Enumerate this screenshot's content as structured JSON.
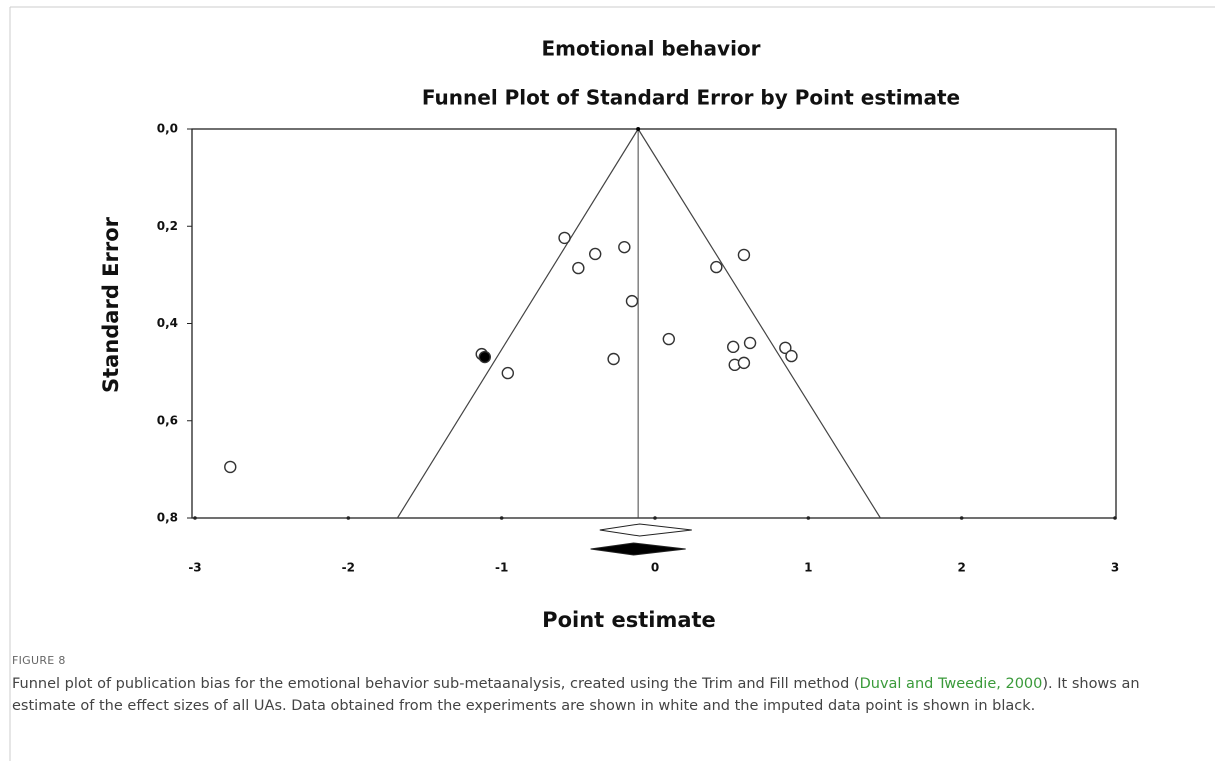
{
  "chart_data": {
    "type": "scatter",
    "title": "Emotional behavior",
    "subtitle": "Funnel Plot of Standard Error by Point estimate",
    "x_label": "Point estimate",
    "y_label": "Standard Error",
    "xlim": [
      -3,
      3
    ],
    "xticks": [
      -3,
      -2,
      -1,
      0,
      1,
      2,
      3
    ],
    "ylim": [
      0.8,
      0
    ],
    "yticks": [
      {
        "value": 0,
        "label": "0,0"
      },
      {
        "value": 0.2,
        "label": "0,2"
      },
      {
        "value": 0.4,
        "label": "0,4"
      },
      {
        "value": 0.6,
        "label": "0,6"
      },
      {
        "value": 0.8,
        "label": "0,8"
      }
    ],
    "funnel_center": -0.11,
    "funnel_bottom": [
      -1.68,
      1.47
    ],
    "summary": [
      {
        "estimate": -0.1,
        "lower": -0.36,
        "upper": 0.24,
        "color": "#ffffff"
      },
      {
        "estimate": -0.14,
        "lower": -0.42,
        "upper": 0.2,
        "color": "#000000"
      }
    ],
    "series": [
      {
        "color": "#ffffff",
        "x": [
          -0.59,
          -0.5,
          -0.39,
          -0.2,
          -0.15,
          -0.27,
          0.09,
          -0.96,
          -1.13,
          -2.77,
          0.4,
          0.58,
          0.51,
          0.62,
          0.52,
          0.58,
          0.85,
          0.89
        ],
        "values": [
          0.224,
          0.286,
          0.257,
          0.243,
          0.354,
          0.473,
          0.432,
          0.502,
          0.463,
          0.695,
          0.284,
          0.259,
          0.448,
          0.44,
          0.485,
          0.481,
          0.45,
          0.467
        ]
      },
      {
        "color": "#000000",
        "x": [
          -1.11
        ],
        "values": [
          0.469
        ]
      }
    ]
  },
  "caption": {
    "label": "FIGURE 8",
    "text_before": "Funnel plot of publication bias for the emotional behavior sub-metaanalysis, created using the Trim and Fill method (",
    "citation": "Duval and Tweedie, 2000",
    "text_after": "). It shows an estimate of the effect sizes of all UAs. Data obtained from the experiments are shown in white and the imputed data point is shown in black."
  }
}
